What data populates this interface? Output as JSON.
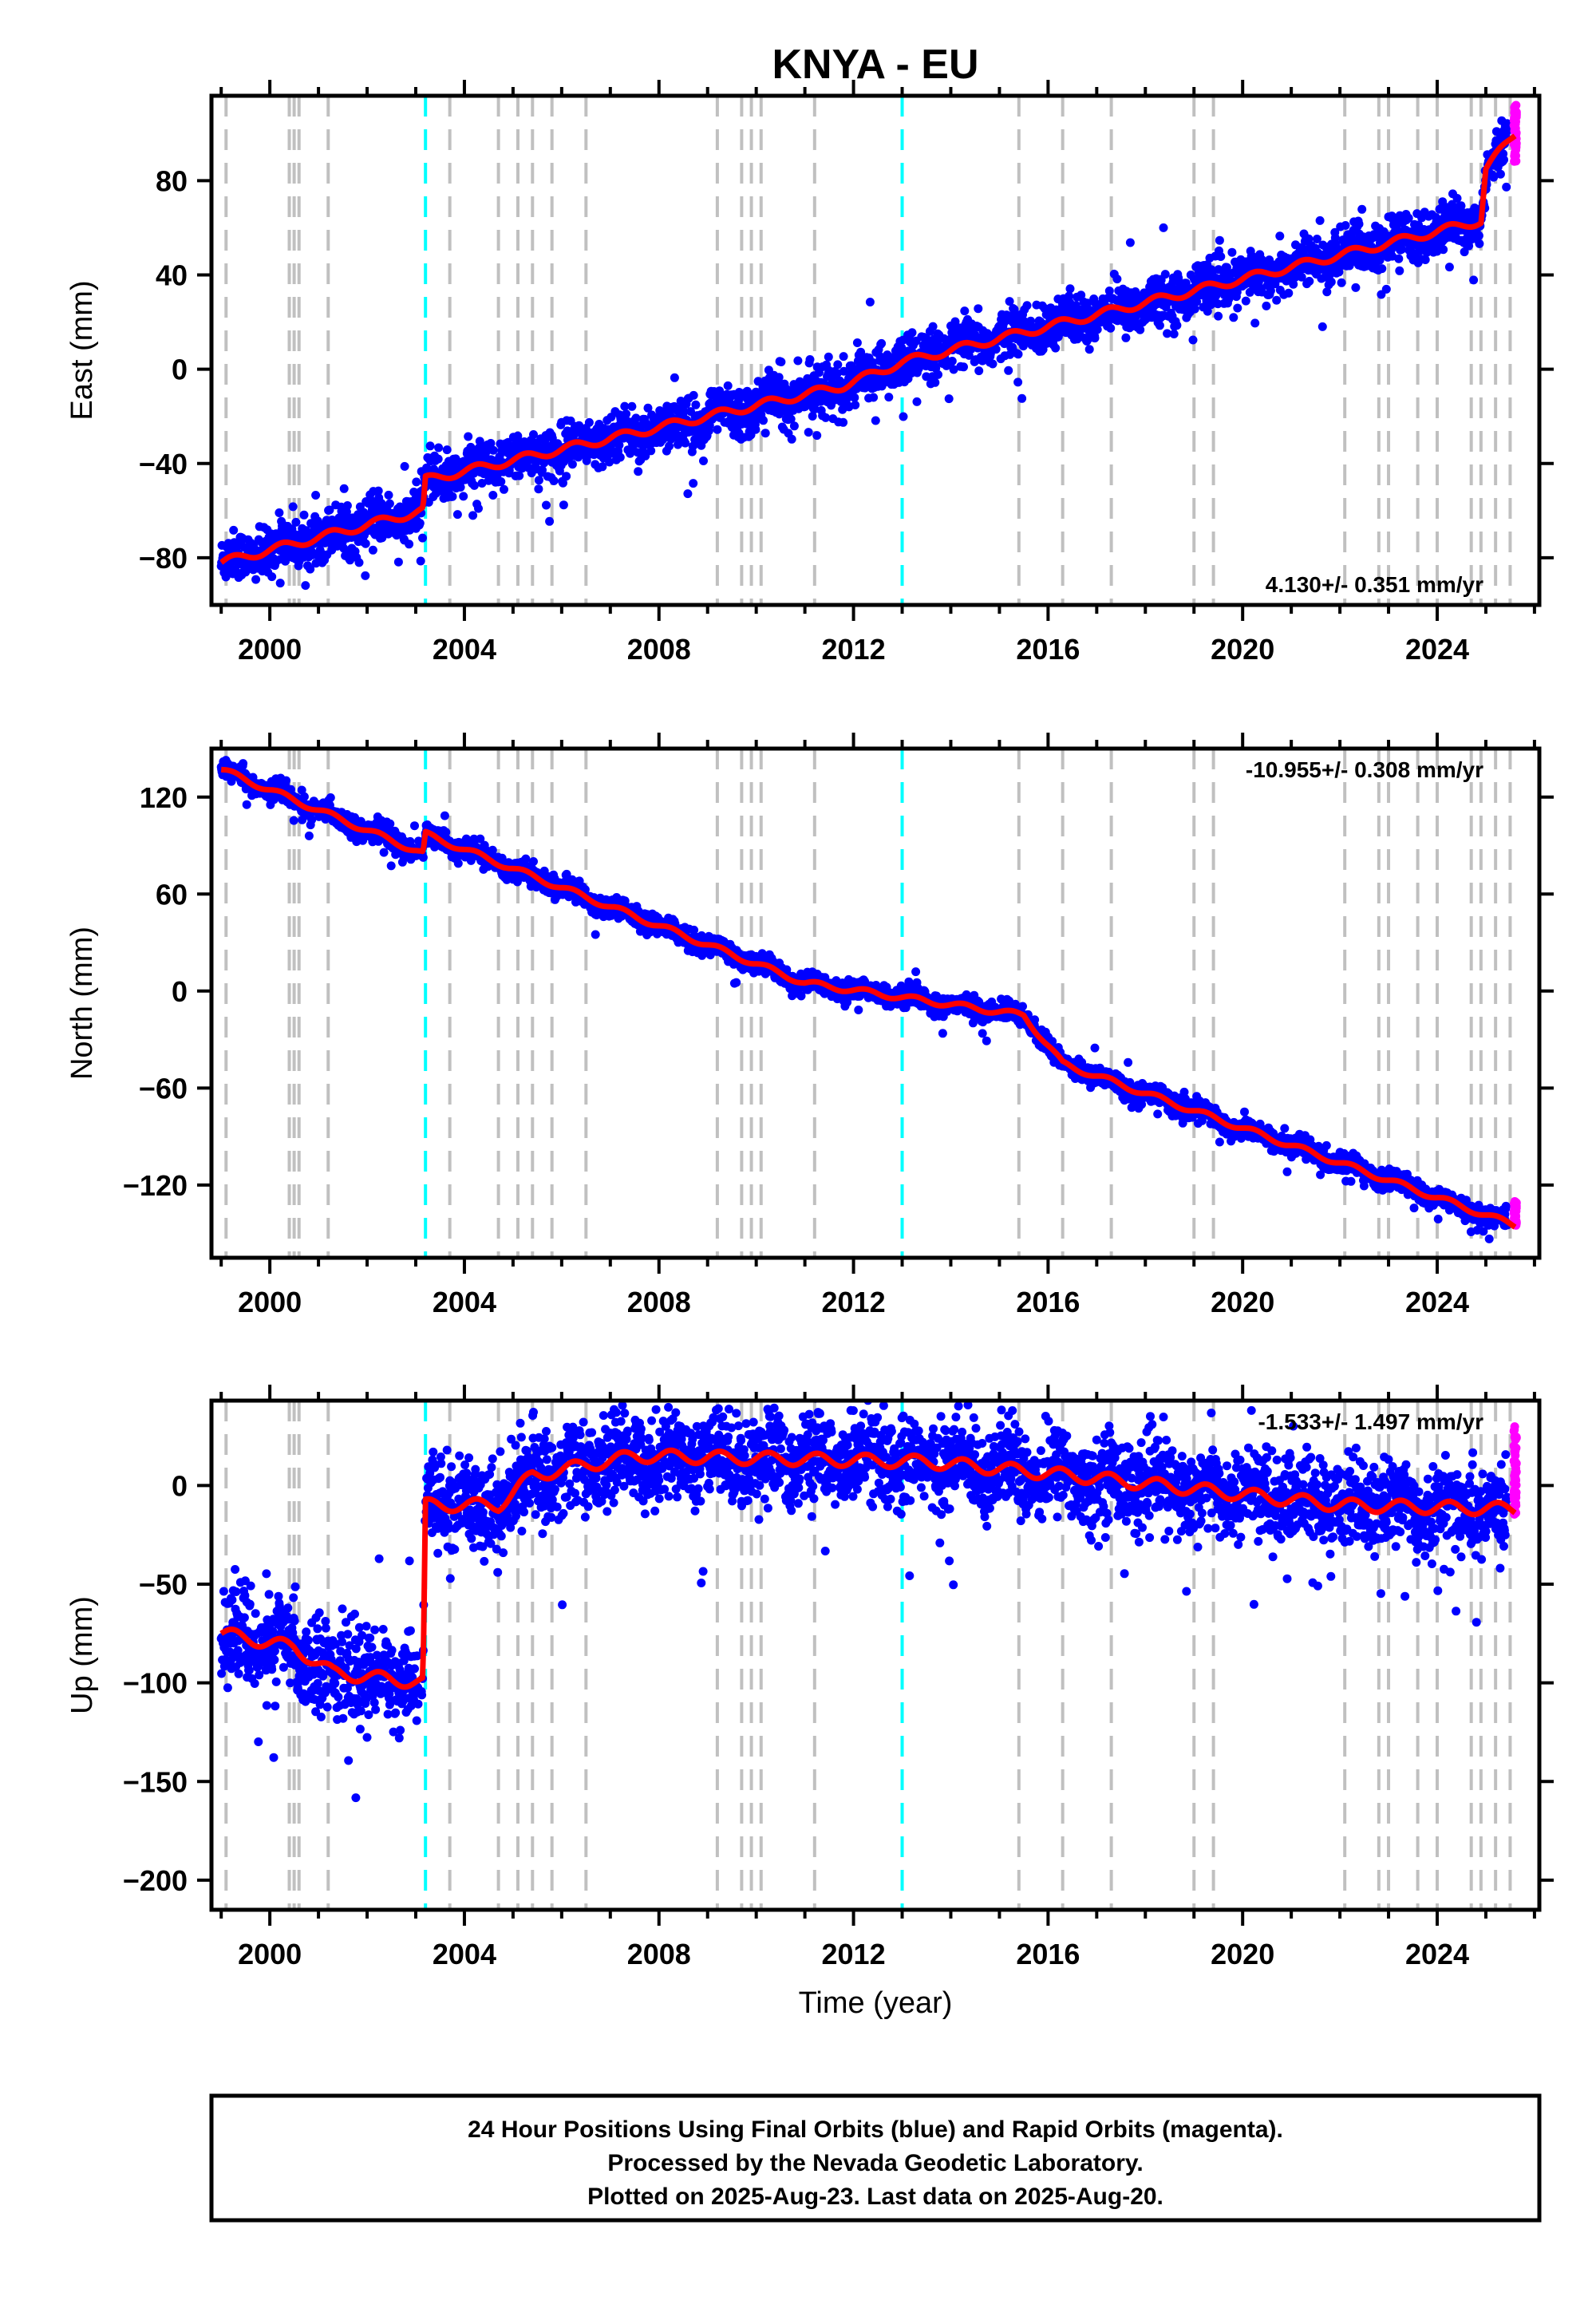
{
  "title": "KNYA - EU",
  "x_axis": {
    "label": "Time (year)",
    "range": [
      1998.8,
      2026.1
    ],
    "ticks": [
      2000,
      2004,
      2008,
      2012,
      2016,
      2020,
      2024
    ]
  },
  "colors": {
    "final_orbits": "#0000ff",
    "rapid_orbits": "#ff00ff",
    "model": "#ff0000",
    "equipment_change": "#c0c0c0",
    "earthquake": "#00ffff"
  },
  "footer": {
    "line1": "24 Hour Positions Using Final Orbits (blue) and Rapid Orbits (magenta).",
    "line2": "Processed by the Nevada Geodetic Laboratory.",
    "line3": "Plotted on 2025-Aug-23. Last data on 2025-Aug-20."
  },
  "chart_data": [
    {
      "type": "scatter",
      "component": "east",
      "ylabel": "East (mm)",
      "ylim": [
        -100,
        116
      ],
      "yticks": [
        -80,
        -40,
        0,
        40,
        80
      ],
      "rate_text": "4.130+/- 0.351 mm/yr",
      "rate_position": "bottom-right",
      "noise_mm": 5,
      "grey_lines": [
        1999.1,
        2000.4,
        2000.5,
        2000.6,
        2001.2,
        2003.7,
        2004.7,
        2005.1,
        2005.4,
        2005.8,
        2006.5,
        2009.2,
        2009.7,
        2009.9,
        2010.1,
        2011.2,
        2015.4,
        2016.3,
        2017.3,
        2019.0,
        2019.4,
        2022.1,
        2022.8,
        2023.0,
        2023.6,
        2024.0,
        2024.7,
        2024.9,
        2025.2,
        2025.5
      ],
      "cyan_lines": [
        2003.2,
        2013.0
      ],
      "model_trend": {
        "x": [
          1999.0,
          2003.15,
          2003.2,
          2011.8,
          2013.0,
          2024.9,
          2025.0,
          2025.6
        ],
        "y": [
          -82,
          -60,
          -47,
          -7,
          3,
          63,
          85,
          100
        ]
      },
      "final_orbits_extent": [
        1999.0,
        2025.45
      ],
      "rapid_orbits": {
        "x_range": [
          2025.45,
          2025.63
        ],
        "y_range": [
          88,
          112
        ]
      }
    },
    {
      "type": "scatter",
      "component": "north",
      "ylabel": "North (mm)",
      "ylim": [
        -165,
        150
      ],
      "yticks": [
        -120,
        -60,
        0,
        60,
        120
      ],
      "rate_text": "-10.955+/- 0.308 mm/yr",
      "rate_position": "top-right",
      "noise_mm": 3,
      "grey_lines": [
        1999.1,
        2000.4,
        2000.5,
        2000.6,
        2001.2,
        2003.7,
        2004.7,
        2005.1,
        2005.4,
        2005.8,
        2006.5,
        2009.2,
        2009.7,
        2009.9,
        2010.1,
        2011.2,
        2015.4,
        2016.3,
        2017.3,
        2019.0,
        2019.4,
        2022.1,
        2022.8,
        2023.0,
        2023.6,
        2024.0,
        2024.7,
        2024.9,
        2025.2,
        2025.5
      ],
      "cyan_lines": [
        2003.2,
        2013.0
      ],
      "model_trend": {
        "x": [
          1999.0,
          2003.15,
          2003.2,
          2011.0,
          2015.5,
          2016.3,
          2025.6
        ],
        "y": [
          137,
          85,
          97,
          5,
          -15,
          -45,
          -145
        ]
      },
      "final_orbits_extent": [
        1999.0,
        2025.45
      ],
      "rapid_orbits": {
        "x_range": [
          2025.45,
          2025.63
        ],
        "y_range": [
          -145,
          -130
        ]
      }
    },
    {
      "type": "scatter",
      "component": "up",
      "ylabel": "Up (mm)",
      "ylim": [
        -215,
        43
      ],
      "yticks": [
        -200,
        -150,
        -100,
        -50,
        0
      ],
      "rate_text": "-1.533+/- 1.497 mm/yr",
      "rate_position": "top-right",
      "noise_mm": 11,
      "grey_lines": [
        1999.1,
        2000.4,
        2000.5,
        2000.6,
        2001.2,
        2003.7,
        2004.7,
        2005.1,
        2005.4,
        2005.8,
        2006.5,
        2009.2,
        2009.7,
        2009.9,
        2010.1,
        2011.2,
        2015.4,
        2016.3,
        2017.3,
        2019.0,
        2019.4,
        2022.1,
        2022.8,
        2023.0,
        2023.6,
        2024.0,
        2024.7,
        2024.9,
        2025.2,
        2025.5
      ],
      "cyan_lines": [
        2003.2,
        2013.0
      ],
      "model_trend": {
        "x": [
          1999.0,
          2000.5,
          2001.3,
          2003.15,
          2003.2,
          2004.7,
          2005.4,
          2007.5,
          2013.5,
          2016.5,
          2022.0,
          2025.6
        ],
        "y": [
          -75,
          -82,
          -95,
          -100,
          -10,
          -10,
          5,
          15,
          12,
          5,
          -10,
          -12
        ]
      },
      "final_orbits_extent": [
        1999.0,
        2025.45
      ],
      "rapid_orbits": {
        "x_range": [
          2025.45,
          2025.63
        ],
        "y_range": [
          -15,
          30
        ]
      }
    }
  ]
}
